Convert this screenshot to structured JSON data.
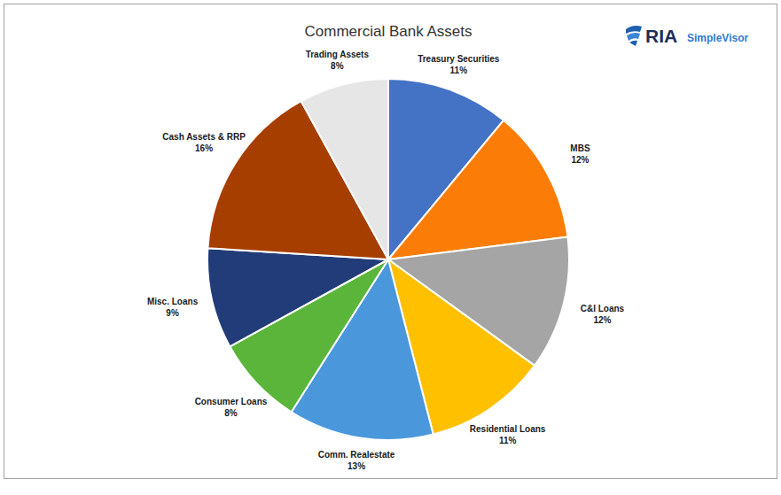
{
  "chart_data": {
    "type": "pie",
    "title": "Commercial Bank Assets",
    "annotations": [
      "RIA",
      "SimpleVisor"
    ],
    "categories": [
      "Treasury Securities",
      "MBS",
      "C&I Loans",
      "Residential Loans",
      "Comm. Realestate",
      "Consumer Loans",
      "Misc. Loans",
      "Cash Assets & RRP",
      "Trading Assets"
    ],
    "values": [
      11,
      12,
      12,
      11,
      13,
      8,
      9,
      16,
      8
    ],
    "value_labels": [
      "11%",
      "12%",
      "12%",
      "11%",
      "13%",
      "8%",
      "9%",
      "16%",
      "8%"
    ],
    "colors": [
      "#4472c4",
      "#fb7d07",
      "#a5a5a5",
      "#ffc000",
      "#4a97db",
      "#5bb53a",
      "#213c78",
      "#a63e00",
      "#e6e6e6"
    ],
    "data_labels": true
  }
}
